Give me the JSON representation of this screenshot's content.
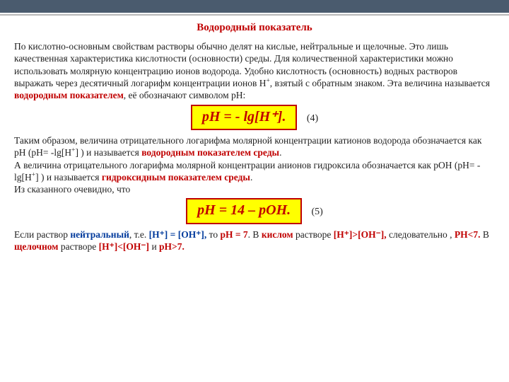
{
  "title": "Водородный показатель",
  "p1_a": " По кислотно-основным свойствам растворы обычно делят на кислые, нейтральные и щелочные. Это лишь качественная характеристика кислотности (основности) среды. Для количественной характеристики можно использовать молярную концентрацию ионов водорода. Удобно кислотность (основность) водных растворов выражать через десятичный логарифм концентрации ионов H",
  "p1_b": ", взятый с обратным знаком. Эта величина называется ",
  "p1_red": "водородным показателем",
  "p1_c": ", её обозначают символом pH:",
  "formula1": "pH = - lg[H⁺].",
  "eqnum1": "(4)",
  "p2_a": "Таким образом, величина отрицательного логарифма молярной концентрации катионов водорода обозначается как pH (pH= -lg[H",
  "p2_b": "] ) и называется ",
  "p2_red": "водородным показателем среды",
  "p3_a": "А величина отрицательного логарифма молярной концентрации анионов гидроксила обозначается как pOH (pH= -lg[H",
  "p3_b": "] ) и называется ",
  "p3_red": "гидроксидным показателем среды",
  "p4": "Из сказанного очевидно, что",
  "formula2": "pH = 14 – pOH.",
  "eqnum2": "(5)",
  "p5_a": "Если раствор ",
  "p5_neutral": "нейтральный",
  "p5_b": ", т.е. ",
  "p5_eq": "[H⁺] = [OH⁺],",
  "p5_c": " то ",
  "p5_ph7": "pH = 7",
  "p5_d": ". В ",
  "p5_acid": "кислом",
  "p5_e": " растворе ",
  "p5_hgt": "[H⁺]>[OH⁻],",
  "p5_f": " следовательно , ",
  "p5_phlt": "PH<7.",
  "p5_g": " В ",
  "p5_base": "щелочном",
  "p5_h": " растворе ",
  "p5_hlt": "[H⁺]<[OH⁻]",
  "p5_i": " и ",
  "p5_phgt": "pH>7."
}
